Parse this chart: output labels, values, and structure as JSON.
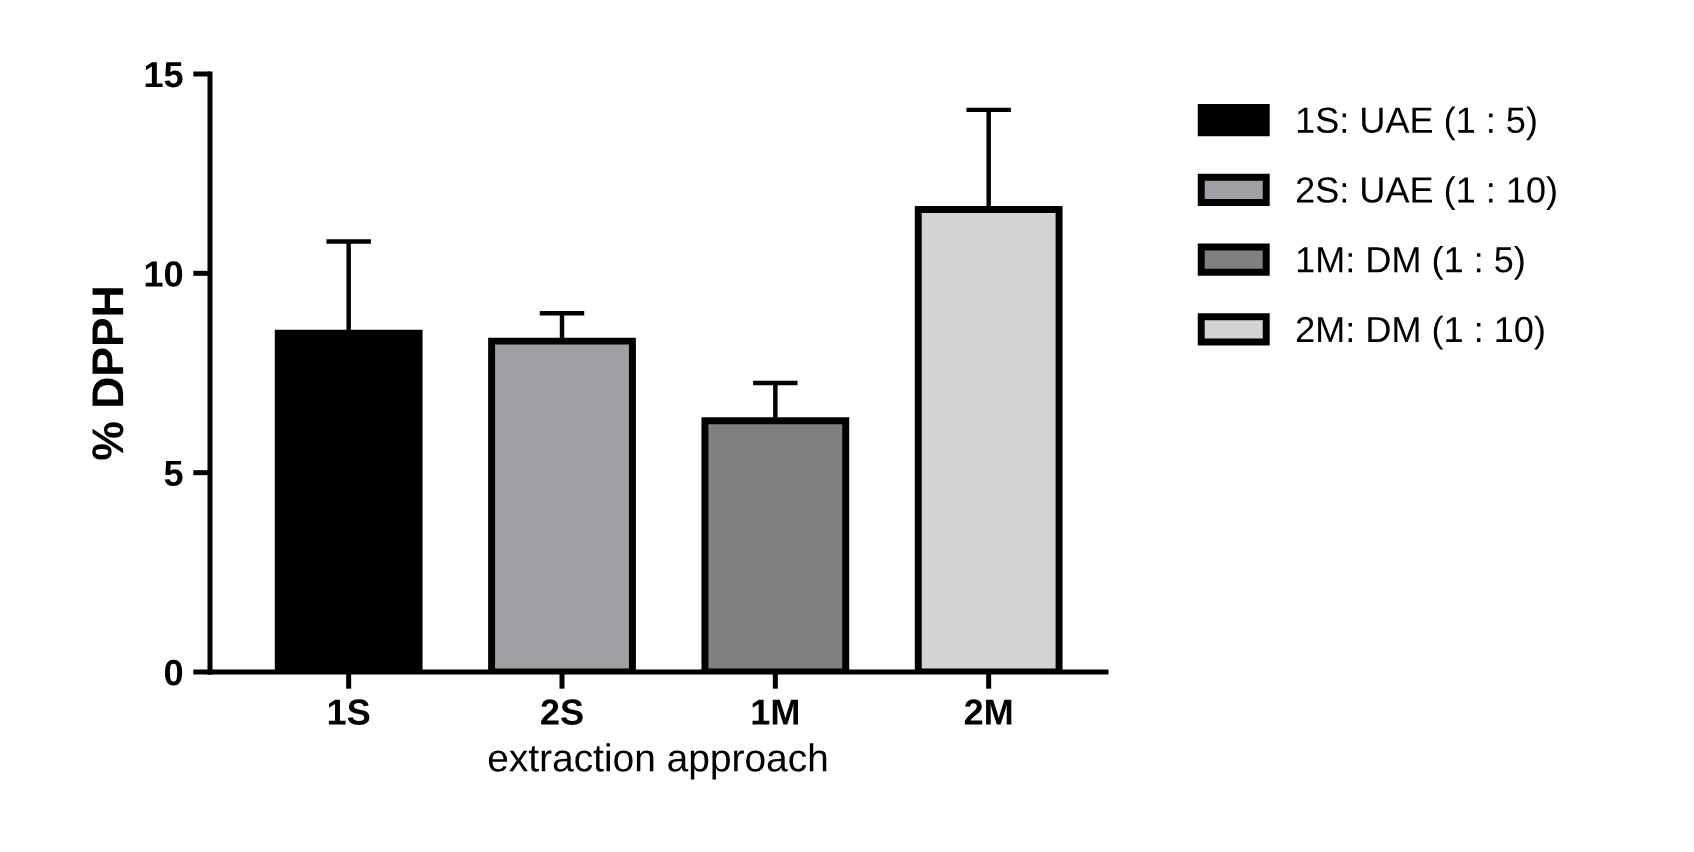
{
  "chart_data": {
    "type": "bar",
    "ylabel": "% DPPH",
    "xlabel": "extraction approach",
    "categories": [
      "1S",
      "2S",
      "1M",
      "2M"
    ],
    "series": [
      {
        "name": "1S: UAE (1 : 5)",
        "color": "#000000",
        "values": [
          8.5,
          null,
          null,
          null
        ],
        "errors": [
          [
            8.5,
            10.8
          ],
          null,
          null,
          null
        ]
      },
      {
        "name": "2S: UAE (1 : 10)",
        "color": "#a0a0a4",
        "values": [
          null,
          8.3,
          null,
          null
        ],
        "errors": [
          null,
          [
            8.3,
            9.0
          ],
          null,
          null
        ]
      },
      {
        "name": "1M: DM (1 : 5)",
        "color": "#808080",
        "values": [
          null,
          null,
          6.3,
          null
        ],
        "errors": [
          null,
          null,
          [
            6.3,
            7.25
          ],
          null
        ]
      },
      {
        "name": "2M: DM (1 : 10)",
        "color": "#d3d3d3",
        "values": [
          null,
          null,
          null,
          11.6
        ],
        "errors": [
          null,
          null,
          null,
          [
            11.6,
            14.1
          ]
        ]
      }
    ],
    "ylim": [
      0,
      15
    ],
    "yticks": [
      0,
      5,
      10,
      15
    ],
    "grid": false,
    "legend": "right"
  }
}
